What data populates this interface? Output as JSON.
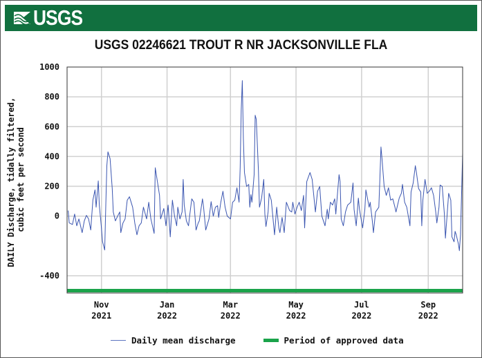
{
  "header": {
    "logo_text": "USGS",
    "banner_color": "#11703f"
  },
  "chart_data": {
    "type": "line",
    "title": "USGS 02246621 TROUT R NR JACKSONVILLE FLA",
    "ylabel_lines": [
      "DAILY Discharge, tidally filtered,",
      "cubic feet per second"
    ],
    "xlabel": "",
    "ylim": [
      -516,
      1000
    ],
    "xlim": [
      "2021-09-30",
      "2022-10-03"
    ],
    "yticks": [
      -400,
      0,
      200,
      400,
      600,
      800,
      1000
    ],
    "ytick_labels": [
      "-400",
      "0",
      "200",
      "400",
      "600",
      "800",
      "1000"
    ],
    "xticks": [
      {
        "date": "2021-11-01",
        "label": [
          "Nov",
          "2021"
        ]
      },
      {
        "date": "2022-01-01",
        "label": [
          "Jan",
          "2022"
        ]
      },
      {
        "date": "2022-03-01",
        "label": [
          "Mar",
          "2022"
        ]
      },
      {
        "date": "2022-05-01",
        "label": [
          "May",
          "2022"
        ]
      },
      {
        "date": "2022-07-01",
        "label": [
          "Jul",
          "2022"
        ]
      },
      {
        "date": "2022-09-01",
        "label": [
          "Sep",
          "2022"
        ]
      }
    ],
    "grid": true,
    "legend_position": "bottom",
    "series": [
      {
        "name": "Daily mean discharge",
        "color": "#3a55b0",
        "points": [
          [
            "2021-10-01",
            37
          ],
          [
            "2021-10-02",
            -46
          ],
          [
            "2021-10-05",
            -56
          ],
          [
            "2021-10-07",
            14
          ],
          [
            "2021-10-09",
            -65
          ],
          [
            "2021-10-11",
            -19
          ],
          [
            "2021-10-14",
            -111
          ],
          [
            "2021-10-16",
            -32
          ],
          [
            "2021-10-18",
            5
          ],
          [
            "2021-10-20",
            -19
          ],
          [
            "2021-10-22",
            -93
          ],
          [
            "2021-10-24",
            107
          ],
          [
            "2021-10-26",
            176
          ],
          [
            "2021-10-27",
            60
          ],
          [
            "2021-10-29",
            236
          ],
          [
            "2021-10-30",
            74
          ],
          [
            "2021-11-01",
            -79
          ],
          [
            "2021-11-02",
            -172
          ],
          [
            "2021-11-04",
            -227
          ],
          [
            "2021-11-05",
            74
          ],
          [
            "2021-11-06",
            338
          ],
          [
            "2021-11-07",
            431
          ],
          [
            "2021-11-09",
            385
          ],
          [
            "2021-11-11",
            185
          ],
          [
            "2021-11-12",
            28
          ],
          [
            "2021-11-14",
            -32
          ],
          [
            "2021-11-16",
            0
          ],
          [
            "2021-11-18",
            28
          ],
          [
            "2021-11-19",
            -111
          ],
          [
            "2021-11-21",
            -46
          ],
          [
            "2021-11-23",
            -19
          ],
          [
            "2021-11-25",
            107
          ],
          [
            "2021-11-27",
            130
          ],
          [
            "2021-11-30",
            60
          ],
          [
            "2021-12-02",
            -46
          ],
          [
            "2021-12-04",
            -125
          ],
          [
            "2021-12-06",
            -65
          ],
          [
            "2021-12-08",
            -46
          ],
          [
            "2021-12-10",
            60
          ],
          [
            "2021-12-13",
            -19
          ],
          [
            "2021-12-15",
            93
          ],
          [
            "2021-12-17",
            -19
          ],
          [
            "2021-12-20",
            -116
          ],
          [
            "2021-12-21",
            324
          ],
          [
            "2021-12-23",
            232
          ],
          [
            "2021-12-25",
            139
          ],
          [
            "2021-12-26",
            -19
          ],
          [
            "2021-12-29",
            51
          ],
          [
            "2021-12-31",
            -65
          ],
          [
            "2022-01-02",
            74
          ],
          [
            "2022-01-04",
            -139
          ],
          [
            "2022-01-06",
            107
          ],
          [
            "2022-01-08",
            0
          ],
          [
            "2022-01-10",
            -65
          ],
          [
            "2022-01-11",
            60
          ],
          [
            "2022-01-13",
            -19
          ],
          [
            "2022-01-15",
            28
          ],
          [
            "2022-01-16",
            246
          ],
          [
            "2022-01-17",
            74
          ],
          [
            "2022-01-19",
            -32
          ],
          [
            "2022-01-21",
            -65
          ],
          [
            "2022-01-22",
            0
          ],
          [
            "2022-01-24",
            116
          ],
          [
            "2022-01-26",
            93
          ],
          [
            "2022-01-28",
            -93
          ],
          [
            "2022-01-30",
            -46
          ],
          [
            "2022-01-31",
            -32
          ],
          [
            "2022-02-03",
            116
          ],
          [
            "2022-02-04",
            60
          ],
          [
            "2022-02-06",
            -93
          ],
          [
            "2022-02-09",
            -19
          ],
          [
            "2022-02-11",
            97
          ],
          [
            "2022-02-13",
            0
          ],
          [
            "2022-02-15",
            60
          ],
          [
            "2022-02-17",
            70
          ],
          [
            "2022-02-18",
            -9
          ],
          [
            "2022-02-20",
            93
          ],
          [
            "2022-02-22",
            167
          ],
          [
            "2022-02-24",
            60
          ],
          [
            "2022-02-26",
            0
          ],
          [
            "2022-03-01",
            -19
          ],
          [
            "2022-03-03",
            93
          ],
          [
            "2022-03-05",
            107
          ],
          [
            "2022-03-07",
            190
          ],
          [
            "2022-03-09",
            93
          ],
          [
            "2022-03-10",
            324
          ],
          [
            "2022-03-11",
            709
          ],
          [
            "2022-03-12",
            909
          ],
          [
            "2022-03-13",
            524
          ],
          [
            "2022-03-14",
            292
          ],
          [
            "2022-03-16",
            199
          ],
          [
            "2022-03-18",
            213
          ],
          [
            "2022-03-19",
            60
          ],
          [
            "2022-03-20",
            144
          ],
          [
            "2022-03-21",
            93
          ],
          [
            "2022-03-23",
            278
          ],
          [
            "2022-03-24",
            677
          ],
          [
            "2022-03-25",
            649
          ],
          [
            "2022-03-27",
            306
          ],
          [
            "2022-03-28",
            60
          ],
          [
            "2022-03-30",
            121
          ],
          [
            "2022-04-01",
            246
          ],
          [
            "2022-04-02",
            14
          ],
          [
            "2022-04-03",
            -70
          ],
          [
            "2022-04-05",
            28
          ],
          [
            "2022-04-06",
            153
          ],
          [
            "2022-04-08",
            107
          ],
          [
            "2022-04-11",
            -125
          ],
          [
            "2022-04-13",
            60
          ],
          [
            "2022-04-15",
            -79
          ],
          [
            "2022-04-16",
            -111
          ],
          [
            "2022-04-18",
            -9
          ],
          [
            "2022-04-20",
            -111
          ],
          [
            "2022-04-22",
            93
          ],
          [
            "2022-04-25",
            37
          ],
          [
            "2022-04-27",
            28
          ],
          [
            "2022-04-28",
            93
          ],
          [
            "2022-04-30",
            14
          ],
          [
            "2022-05-02",
            60
          ],
          [
            "2022-05-04",
            93
          ],
          [
            "2022-05-06",
            37
          ],
          [
            "2022-05-08",
            139
          ],
          [
            "2022-05-09",
            -79
          ],
          [
            "2022-05-11",
            232
          ],
          [
            "2022-05-14",
            292
          ],
          [
            "2022-05-16",
            246
          ],
          [
            "2022-05-19",
            28
          ],
          [
            "2022-05-21",
            167
          ],
          [
            "2022-05-23",
            199
          ],
          [
            "2022-05-25",
            0
          ],
          [
            "2022-05-28",
            -65
          ],
          [
            "2022-05-30",
            46
          ],
          [
            "2022-05-31",
            -19
          ],
          [
            "2022-06-02",
            93
          ],
          [
            "2022-06-04",
            74
          ],
          [
            "2022-06-06",
            116
          ],
          [
            "2022-06-07",
            14
          ],
          [
            "2022-06-10",
            278
          ],
          [
            "2022-06-11",
            232
          ],
          [
            "2022-06-12",
            -19
          ],
          [
            "2022-06-14",
            -65
          ],
          [
            "2022-06-16",
            28
          ],
          [
            "2022-06-18",
            74
          ],
          [
            "2022-06-21",
            93
          ],
          [
            "2022-06-23",
            222
          ],
          [
            "2022-06-24",
            46
          ],
          [
            "2022-06-26",
            -65
          ],
          [
            "2022-06-28",
            121
          ],
          [
            "2022-06-29",
            46
          ],
          [
            "2022-07-02",
            -79
          ],
          [
            "2022-07-04",
            46
          ],
          [
            "2022-07-05",
            176
          ],
          [
            "2022-07-08",
            60
          ],
          [
            "2022-07-09",
            93
          ],
          [
            "2022-07-11",
            -32
          ],
          [
            "2022-07-12",
            -111
          ],
          [
            "2022-07-14",
            28
          ],
          [
            "2022-07-17",
            60
          ],
          [
            "2022-07-18",
            246
          ],
          [
            "2022-07-19",
            464
          ],
          [
            "2022-07-20",
            385
          ],
          [
            "2022-07-22",
            199
          ],
          [
            "2022-07-24",
            139
          ],
          [
            "2022-07-26",
            190
          ],
          [
            "2022-07-28",
            107
          ],
          [
            "2022-07-30",
            116
          ],
          [
            "2022-08-01",
            60
          ],
          [
            "2022-08-02",
            28
          ],
          [
            "2022-08-05",
            121
          ],
          [
            "2022-08-07",
            153
          ],
          [
            "2022-08-08",
            213
          ],
          [
            "2022-08-10",
            93
          ],
          [
            "2022-08-12",
            60
          ],
          [
            "2022-08-15",
            -65
          ],
          [
            "2022-08-16",
            162
          ],
          [
            "2022-08-18",
            222
          ],
          [
            "2022-08-20",
            338
          ],
          [
            "2022-08-21",
            292
          ],
          [
            "2022-08-23",
            185
          ],
          [
            "2022-08-25",
            162
          ],
          [
            "2022-08-26",
            -65
          ],
          [
            "2022-08-27",
            107
          ],
          [
            "2022-08-29",
            246
          ],
          [
            "2022-08-31",
            153
          ],
          [
            "2022-09-02",
            167
          ],
          [
            "2022-09-04",
            190
          ],
          [
            "2022-09-06",
            139
          ],
          [
            "2022-09-08",
            28
          ],
          [
            "2022-09-09",
            -46
          ],
          [
            "2022-09-11",
            60
          ],
          [
            "2022-09-12",
            208
          ],
          [
            "2022-09-14",
            199
          ],
          [
            "2022-09-16",
            14
          ],
          [
            "2022-09-17",
            -148
          ],
          [
            "2022-09-18",
            -46
          ],
          [
            "2022-09-20",
            153
          ],
          [
            "2022-09-22",
            107
          ],
          [
            "2022-09-23",
            -139
          ],
          [
            "2022-09-25",
            -172
          ],
          [
            "2022-09-26",
            -102
          ],
          [
            "2022-09-27",
            -125
          ],
          [
            "2022-09-29",
            -185
          ],
          [
            "2022-09-30",
            -232
          ],
          [
            "2022-10-01",
            -125
          ],
          [
            "2022-10-02",
            139
          ],
          [
            "2022-10-03",
            422
          ]
        ]
      },
      {
        "name": "Period of approved data",
        "color": "#1aa34a",
        "range": [
          "2021-09-30",
          "2022-10-03"
        ]
      }
    ]
  }
}
